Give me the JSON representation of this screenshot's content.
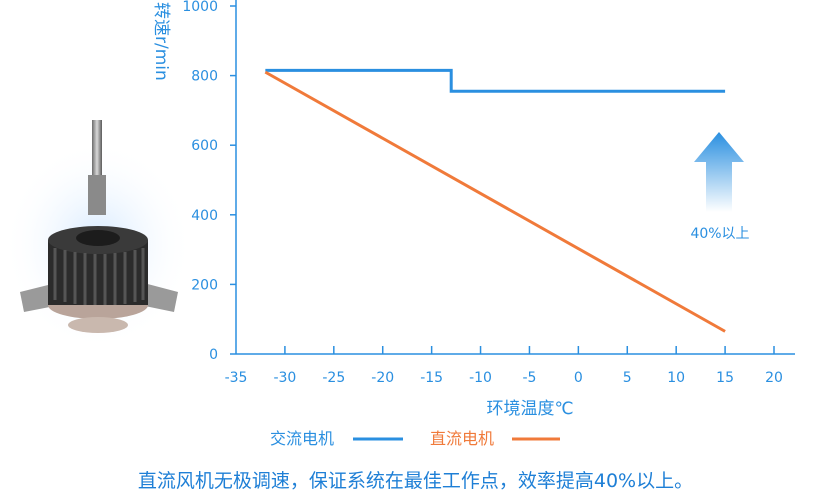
{
  "chart_data": {
    "type": "line",
    "ylabel": "转速r/min",
    "xlabel": "环境温度℃",
    "xlim": [
      -35,
      20
    ],
    "ylim": [
      0,
      1000
    ],
    "x_ticks": [
      -35,
      -30,
      -25,
      -20,
      -15,
      -10,
      -5,
      0,
      5,
      10,
      15,
      20
    ],
    "y_ticks": [
      0,
      200,
      400,
      600,
      800,
      1000
    ],
    "series": [
      {
        "name": "交流电机",
        "color": "#2a8fe0",
        "points": [
          [
            -32,
            815
          ],
          [
            -13,
            815
          ],
          [
            -13,
            755
          ],
          [
            15,
            755
          ]
        ]
      },
      {
        "name": "直流电机",
        "color": "#f07a3a",
        "points": [
          [
            -32,
            810
          ],
          [
            15,
            65
          ]
        ]
      }
    ],
    "annotation": {
      "text": "40%以上",
      "x": 15,
      "y": 580
    },
    "grid": false,
    "legend_position": "bottom"
  },
  "caption": "直流风机无极调速，保证系统在最佳工作点，效率提高40%以上。",
  "image": {
    "icon": "dc-fan-motor-icon"
  }
}
